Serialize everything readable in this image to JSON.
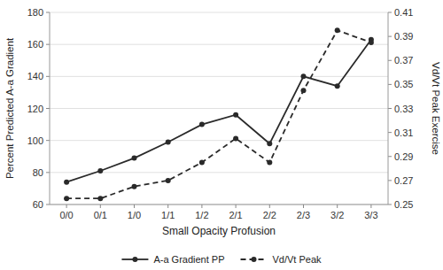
{
  "chart_data": {
    "type": "line",
    "categories": [
      "0/0",
      "0/1",
      "1/0",
      "1/1",
      "1/2",
      "2/1",
      "2/2",
      "2/3",
      "3/2",
      "3/3"
    ],
    "series": [
      {
        "name": "A-a Gradient PP",
        "color": "#2a2a2a",
        "line_style": "solid",
        "marker": "circle",
        "values": [
          74,
          81,
          89,
          99,
          110,
          116,
          98,
          140,
          134,
          163
        ]
      },
      {
        "name": "Vd/Vt Peak",
        "color": "#2a2a2a",
        "line_style": "dashed",
        "marker": "circle",
        "axis": "y2",
        "values": [
          0.255,
          0.255,
          0.265,
          0.27,
          0.285,
          0.305,
          0.285,
          0.345,
          0.395,
          0.385
        ]
      }
    ],
    "x_label": "Small Opacity Profusion",
    "y_label": "Percent Predicted A-a Gradient",
    "y2_label": "Vd/Vt Peak Exercise",
    "ylim": [
      60,
      180
    ],
    "yticks": [
      60,
      80,
      100,
      120,
      140,
      160,
      180
    ],
    "y2lim": [
      0.25,
      0.41
    ],
    "y2ticks": [
      0.25,
      0.27,
      0.29,
      0.31,
      0.33,
      0.35,
      0.37,
      0.39,
      0.41
    ],
    "grid": true,
    "legend": "bottom"
  }
}
